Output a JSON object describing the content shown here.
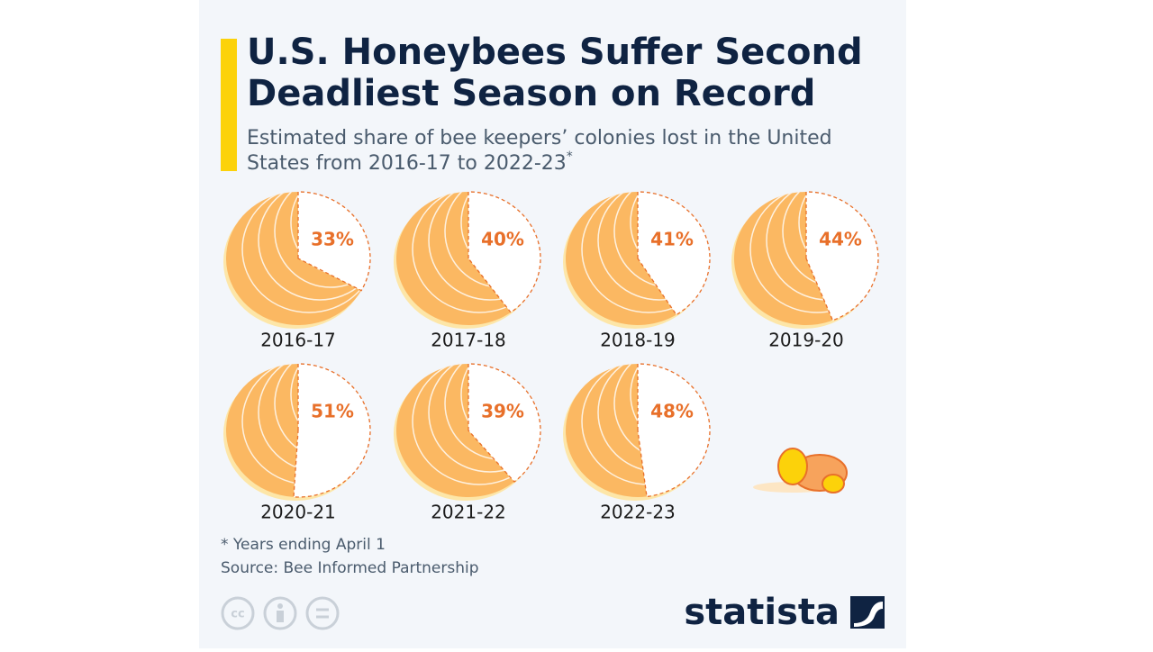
{
  "chart_data": {
    "type": "pie",
    "title": "U.S. Honeybees Suffer Second Deadliest Season on Record",
    "subtitle": "Estimated share of bee keepers’ colonies lost in the United States from 2016-17 to 2022-23",
    "subtitle_note": "*",
    "categories": [
      "2016-17",
      "2017-18",
      "2018-19",
      "2019-20",
      "2020-21",
      "2021-22",
      "2022-23"
    ],
    "values": [
      33,
      40,
      41,
      44,
      51,
      39,
      48
    ],
    "value_labels": [
      "33%",
      "40%",
      "41%",
      "44%",
      "51%",
      "39%",
      "48%"
    ],
    "color": "#fbb862",
    "loss_color": "#e8702a",
    "footnote": "* Years ending April 1",
    "source": "Source: Bee Informed Partnership",
    "brand": "statista"
  }
}
